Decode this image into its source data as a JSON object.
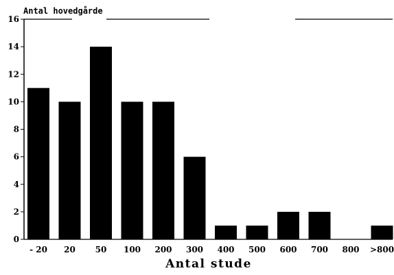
{
  "chart_data": {
    "type": "bar",
    "ylabel": "Antal hovedgårde",
    "xlabel": "Antal stude",
    "categories": [
      "- 20",
      "20",
      "50",
      "100",
      "200",
      "300",
      "400",
      "500",
      "600",
      "700",
      "800",
      ">800"
    ],
    "values": [
      11,
      10,
      14,
      10,
      10,
      6,
      1,
      1,
      2,
      2,
      0,
      1
    ],
    "ylim": [
      0,
      16
    ],
    "yticks": [
      "0",
      "2",
      "4",
      "6",
      "8",
      "10",
      "12",
      "14",
      "16"
    ],
    "bar_color": "#000000",
    "grid": false,
    "legend": "none"
  }
}
